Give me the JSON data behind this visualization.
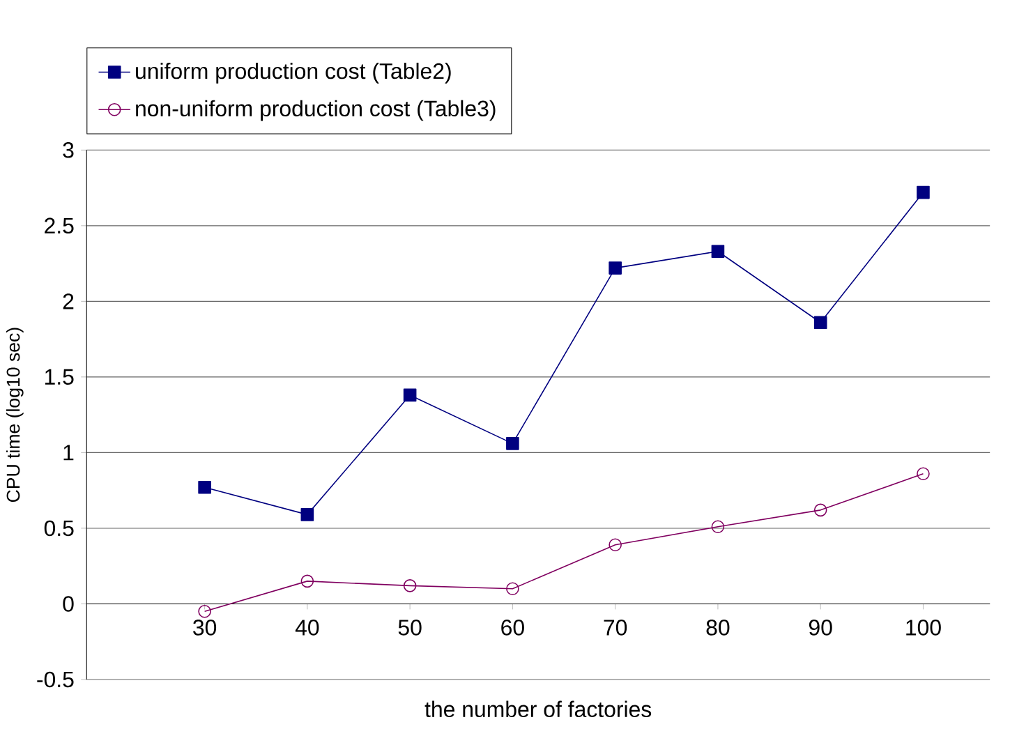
{
  "chart_data": {
    "type": "line",
    "ylabel": "CPU time (log10 sec)",
    "xlabel": "the number of factories",
    "categories": [
      "30",
      "40",
      "50",
      "60",
      "70",
      "80",
      "90",
      "100"
    ],
    "series": [
      {
        "name": "uniform production cost (Table2)",
        "color": "#000080",
        "marker": "square",
        "values": [
          0.77,
          0.59,
          1.38,
          1.06,
          2.22,
          2.33,
          1.86,
          2.72
        ]
      },
      {
        "name": "non-uniform production cost (Table3)",
        "color": "#800060",
        "marker": "circle",
        "values": [
          -0.05,
          0.15,
          0.12,
          0.1,
          0.39,
          0.51,
          0.62,
          0.86
        ]
      }
    ],
    "ylim": [
      -0.5,
      3
    ],
    "yticks": [
      -0.5,
      0,
      0.5,
      1,
      1.5,
      2,
      2.5,
      3
    ],
    "grid": "y",
    "legend": "top",
    "line_style": "solid"
  }
}
